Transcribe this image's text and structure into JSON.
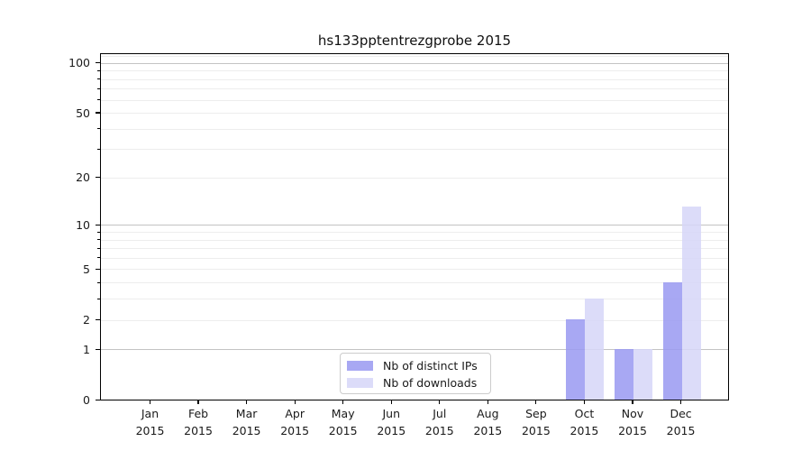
{
  "figure": {
    "background": "#ffffff"
  },
  "chart_data": {
    "type": "bar",
    "title": "hs133pptentrezgprobe 2015",
    "xlabel": "",
    "ylabel": "",
    "categories": [
      "Jan",
      "Feb",
      "Mar",
      "Apr",
      "May",
      "Jun",
      "Jul",
      "Aug",
      "Sep",
      "Oct",
      "Nov",
      "Dec"
    ],
    "x_year_label": "2015",
    "series": [
      {
        "name": "Nb of distinct IPs",
        "color": "#9b9bf1",
        "values": [
          0,
          0,
          0,
          0,
          0,
          0,
          0,
          0,
          0,
          2,
          1,
          4
        ]
      },
      {
        "name": "Nb of downloads",
        "color": "#d7d7f8",
        "values": [
          0,
          0,
          0,
          0,
          0,
          0,
          0,
          0,
          0,
          3,
          1,
          13
        ]
      }
    ],
    "yscale": "log1p",
    "ylim": [
      0,
      114
    ],
    "y_major_tick_labels": [
      "0",
      "1",
      "2",
      "5",
      "10",
      "20",
      "50",
      "100"
    ],
    "y_major_tick_values": [
      0,
      1,
      2,
      5,
      10,
      20,
      50,
      100
    ],
    "y_minor_tick_values": [
      3,
      4,
      6,
      7,
      8,
      9,
      30,
      40,
      60,
      70,
      80,
      90
    ],
    "grid_major_values": [
      1,
      10,
      100
    ],
    "grid_minor_values": [
      2,
      3,
      4,
      5,
      6,
      7,
      8,
      9,
      20,
      30,
      40,
      50,
      60,
      70,
      80,
      90,
      110
    ],
    "legend_position": "lower center",
    "grid": "horizontal"
  },
  "colors": {
    "grid_major": "#c3c3c3",
    "grid_minor": "#ededed",
    "spine": "#000000",
    "text": "#1a1a1a"
  }
}
